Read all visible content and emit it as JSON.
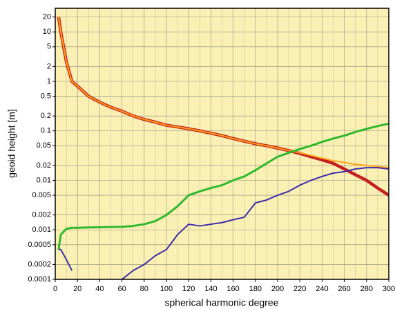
{
  "chart_data": {
    "type": "line",
    "xlabel": "spherical harmonic degree",
    "ylabel": "geoid height [m]",
    "x": [
      3,
      5,
      10,
      15,
      20,
      30,
      40,
      50,
      60,
      70,
      80,
      90,
      100,
      110,
      120,
      130,
      140,
      150,
      160,
      170,
      180,
      190,
      200,
      210,
      220,
      230,
      240,
      250,
      260,
      270,
      280,
      290,
      300
    ],
    "series": [
      {
        "color": "#c41e1e",
        "width": 4.5,
        "values": [
          20,
          10,
          2.5,
          1.0,
          0.8,
          0.5,
          0.38,
          0.3,
          0.25,
          0.2,
          0.17,
          0.15,
          0.13,
          0.12,
          0.11,
          0.1,
          0.09,
          0.08,
          0.07,
          0.062,
          0.055,
          0.05,
          0.045,
          0.04,
          0.035,
          0.03,
          0.026,
          0.022,
          0.017,
          0.013,
          0.01,
          0.007,
          0.005
        ]
      },
      {
        "color": "#ffa31a",
        "width": 2,
        "values": [
          20,
          10,
          2.5,
          1.0,
          0.8,
          0.5,
          0.38,
          0.3,
          0.25,
          0.2,
          0.17,
          0.15,
          0.13,
          0.12,
          0.11,
          0.1,
          0.09,
          0.08,
          0.07,
          0.062,
          0.055,
          0.05,
          0.045,
          0.04,
          0.036,
          0.032,
          0.028,
          0.025,
          0.023,
          0.021,
          0.02,
          0.019,
          0.018
        ]
      },
      {
        "color": "#2eb82e",
        "width": 3,
        "values": [
          0.0004,
          0.0008,
          0.00105,
          0.0011,
          0.0011,
          0.00112,
          0.00113,
          0.00114,
          0.00115,
          0.0012,
          0.0013,
          0.0015,
          0.002,
          0.003,
          0.005,
          0.006,
          0.007,
          0.008,
          0.01,
          0.012,
          0.016,
          0.022,
          0.03,
          0.036,
          0.043,
          0.05,
          0.06,
          0.07,
          0.08,
          0.095,
          0.11,
          0.125,
          0.14
        ]
      },
      {
        "color": "#3a2aa8",
        "width": 2,
        "values": [
          0.0004,
          0.0004,
          0.00025,
          0.00015,
          null,
          null,
          null,
          null,
          0.0001,
          0.00015,
          0.0002,
          0.0003,
          0.0004,
          0.0008,
          0.0013,
          0.0012,
          0.0013,
          0.0014,
          0.0016,
          0.0018,
          0.0035,
          0.004,
          0.005,
          0.006,
          0.008,
          0.01,
          0.012,
          0.014,
          0.015,
          0.017,
          0.018,
          0.018,
          0.017
        ]
      }
    ],
    "xlim": [
      0,
      300
    ],
    "xticks": [
      0,
      20,
      40,
      60,
      80,
      100,
      120,
      140,
      160,
      180,
      200,
      220,
      240,
      260,
      280,
      300
    ],
    "x_minor_ticks": [
      10,
      30,
      50,
      70,
      90,
      110,
      130,
      150,
      170,
      190,
      210,
      230,
      250,
      270,
      290
    ],
    "ylim": [
      0.0001,
      30
    ],
    "log_y": true,
    "yticks": [
      0.0001,
      0.0002,
      0.0005,
      0.001,
      0.002,
      0.005,
      0.01,
      0.02,
      0.05,
      0.1,
      0.2,
      0.5,
      1,
      2,
      5,
      10,
      20
    ],
    "grid": true,
    "background": "#fbf0b4"
  }
}
